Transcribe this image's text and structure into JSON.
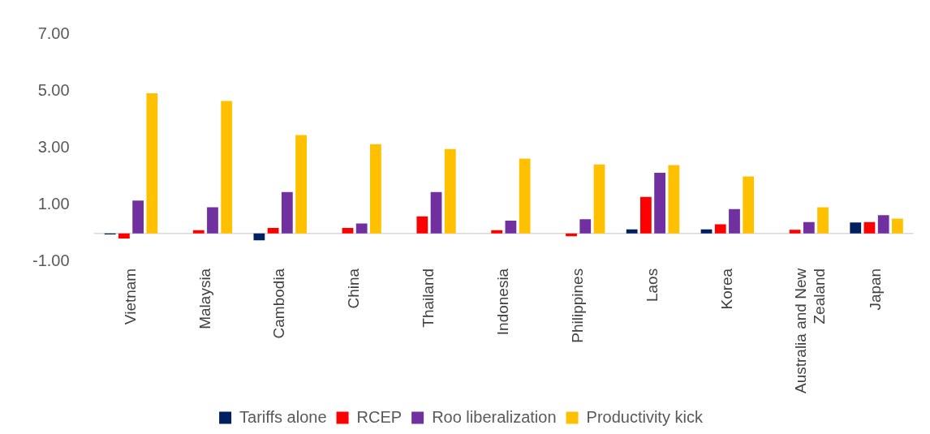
{
  "chart_data": {
    "type": "bar",
    "categories": [
      "Vietnam",
      "Malaysia",
      "Cambodia",
      "China",
      "Thailand",
      "Indonesia",
      "Philippines",
      "Laos",
      "Korea",
      "Australia and New Zealand",
      "Japan"
    ],
    "series": [
      {
        "name": "Tariffs alone",
        "color": "#002060",
        "values": [
          -0.04,
          0,
          -0.24,
          0,
          0,
          0,
          0,
          0.14,
          0.14,
          0,
          0.38
        ]
      },
      {
        "name": "RCEP",
        "color": "#ff0000",
        "values": [
          -0.18,
          0.11,
          0.19,
          0.19,
          0.6,
          0.11,
          -0.1,
          1.28,
          0.32,
          0.13,
          0.4
        ]
      },
      {
        "name": "Roo liberalization",
        "color": "#7030a0",
        "values": [
          1.15,
          0.92,
          1.45,
          0.35,
          1.45,
          0.45,
          0.5,
          2.13,
          0.85,
          0.4,
          0.64
        ]
      },
      {
        "name": "Productivity kick",
        "color": "#ffc000",
        "values": [
          4.92,
          4.65,
          3.45,
          3.13,
          2.96,
          2.63,
          2.42,
          2.4,
          2.0,
          0.92,
          0.52
        ]
      }
    ],
    "ylim": [
      -1,
      7
    ],
    "yticks": [
      {
        "value": -1,
        "label": "-1.00"
      },
      {
        "value": 1,
        "label": "1.00"
      },
      {
        "value": 3,
        "label": "3.00"
      },
      {
        "value": 5,
        "label": "5.00"
      },
      {
        "value": 7,
        "label": "7.00"
      }
    ],
    "grid": false,
    "legend": "bottom"
  }
}
